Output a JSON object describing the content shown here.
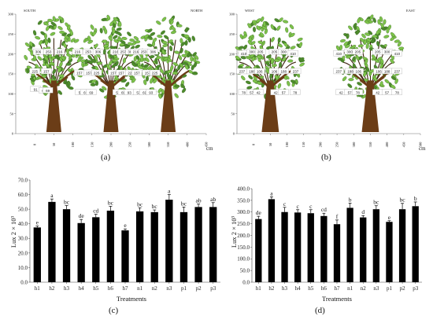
{
  "colors": {
    "trunk": "#6b3d17",
    "leaf": "#7dc24a",
    "leaf_dark": "#4d8b2c",
    "bar": "#000000",
    "axis": "#555555",
    "label_box": "#ffffff"
  },
  "chart_data": [
    {
      "panel": "(a)",
      "type": "scatter",
      "orientation_left": "SOUTH",
      "orientation_right": "NORTH",
      "xlabel": "cm",
      "ylabel": "",
      "xlim": [
        -50,
        450
      ],
      "ylim": [
        0,
        300
      ],
      "xticks": [
        "0",
        "50",
        "100",
        "150",
        "200",
        "250",
        "300",
        "350",
        "400",
        "450"
      ],
      "yticks": [
        "0",
        "50",
        "100",
        "150",
        "200",
        "250",
        "300"
      ],
      "trees": [
        {
          "center": 50,
          "points": [
            {
              "x": 9,
              "y": 205,
              "label": "306"
            },
            {
              "x": 36,
              "y": 205,
              "label": "253"
            },
            {
              "x": 65,
              "y": 205,
              "label": "216"
            },
            {
              "x": 0,
              "y": 156,
              "label": "225"
            },
            {
              "x": 30,
              "y": 156,
              "label": "157"
            },
            {
              "x": 2,
              "y": 111,
              "label": "91"
            },
            {
              "x": 24,
              "y": 108,
              "label": "69"
            },
            {
              "x": 34,
              "y": 108,
              "label": "69"
            }
          ]
        },
        {
          "center": 200,
          "points": [
            {
              "x": 112,
              "y": 205,
              "label": "216"
            },
            {
              "x": 140,
              "y": 205,
              "label": "253"
            },
            {
              "x": 166,
              "y": 205,
              "label": "306"
            },
            {
              "x": 117,
              "y": 152,
              "label": "157"
            },
            {
              "x": 142,
              "y": 152,
              "label": "157"
            },
            {
              "x": 162,
              "y": 152,
              "label": "225"
            },
            {
              "x": 120,
              "y": 103,
              "label": "53"
            },
            {
              "x": 133,
              "y": 103,
              "label": "69"
            },
            {
              "x": 148,
              "y": 103,
              "label": "69"
            }
          ]
        },
        {
          "center": 350,
          "points": [
            {
              "x": 212,
              "y": 205,
              "label": "216"
            },
            {
              "x": 232,
              "y": 205,
              "label": "253"
            },
            {
              "x": 252,
              "y": 205,
              "label": "306"
            },
            {
              "x": 206,
              "y": 152,
              "label": "157"
            },
            {
              "x": 227,
              "y": 152,
              "label": "157"
            },
            {
              "x": 252,
              "y": 152,
              "label": "225"
            },
            {
              "x": 218,
              "y": 103,
              "label": "53"
            },
            {
              "x": 232,
              "y": 103,
              "label": "69"
            },
            {
              "x": 248,
              "y": 103,
              "label": "93"
            }
          ]
        },
        {
          "center": 430,
          "points": [
            {
              "x": 265,
              "y": 205,
              "label": "216"
            },
            {
              "x": 286,
              "y": 205,
              "label": "253"
            },
            {
              "x": 310,
              "y": 205,
              "label": "306"
            },
            {
              "x": 268,
              "y": 152,
              "label": "157"
            },
            {
              "x": 296,
              "y": 152,
              "label": "157"
            },
            {
              "x": 315,
              "y": 152,
              "label": "225"
            },
            {
              "x": 272,
              "y": 103,
              "label": "53"
            },
            {
              "x": 288,
              "y": 103,
              "label": "69"
            },
            {
              "x": 305,
              "y": 103,
              "label": "93"
            }
          ]
        }
      ]
    },
    {
      "panel": "(b)",
      "type": "scatter",
      "orientation_left": "WEST",
      "orientation_right": "EAST",
      "xlabel": "cm",
      "ylabel": "",
      "xlim": [
        -50,
        500
      ],
      "ylim": [
        0,
        300
      ],
      "xticks": [
        "0",
        "50",
        "100",
        "150",
        "200",
        "250",
        "300",
        "350",
        "400",
        "450",
        "500"
      ],
      "yticks": [
        "0",
        "50",
        "100",
        "150",
        "200",
        "250",
        "300"
      ],
      "trees": [
        {
          "center": 50,
          "points": [
            {
              "x": -30,
              "y": 201,
              "label": "410"
            },
            {
              "x": -5,
              "y": 205,
              "label": "300"
            },
            {
              "x": 20,
              "y": 205,
              "label": "205"
            },
            {
              "x": 62,
              "y": 205,
              "label": "205"
            },
            {
              "x": 90,
              "y": 205,
              "label": "300"
            },
            {
              "x": 118,
              "y": 201,
              "label": "410"
            },
            {
              "x": -35,
              "y": 156,
              "label": "237"
            },
            {
              "x": -5,
              "y": 156,
              "label": "188"
            },
            {
              "x": 18,
              "y": 156,
              "label": "106"
            },
            {
              "x": 62,
              "y": 156,
              "label": "106"
            },
            {
              "x": 90,
              "y": 156,
              "label": "188"
            },
            {
              "x": 126,
              "y": 156,
              "label": "237"
            },
            {
              "x": -30,
              "y": 103,
              "label": "78"
            },
            {
              "x": -6,
              "y": 103,
              "label": "57"
            },
            {
              "x": 14,
              "y": 103,
              "label": "42"
            },
            {
              "x": 66,
              "y": 103,
              "label": "42"
            },
            {
              "x": 90,
              "y": 103,
              "label": "57"
            },
            {
              "x": 124,
              "y": 103,
              "label": "78"
            }
          ]
        },
        {
          "center": 350,
          "points": [
            {
              "x": 255,
              "y": 201,
              "label": "410"
            },
            {
              "x": 288,
              "y": 205,
              "label": "300"
            },
            {
              "x": 312,
              "y": 205,
              "label": "205"
            },
            {
              "x": 372,
              "y": 205,
              "label": "205"
            },
            {
              "x": 400,
              "y": 205,
              "label": "300"
            },
            {
              "x": 430,
              "y": 201,
              "label": "410"
            },
            {
              "x": 255,
              "y": 156,
              "label": "237"
            },
            {
              "x": 290,
              "y": 156,
              "label": "188"
            },
            {
              "x": 314,
              "y": 156,
              "label": "106"
            },
            {
              "x": 375,
              "y": 156,
              "label": "106"
            },
            {
              "x": 400,
              "y": 156,
              "label": "188"
            },
            {
              "x": 430,
              "y": 156,
              "label": "237"
            },
            {
              "x": 262,
              "y": 103,
              "label": "42"
            },
            {
              "x": 288,
              "y": 103,
              "label": "57"
            },
            {
              "x": 312,
              "y": 103,
              "label": "78"
            },
            {
              "x": 372,
              "y": 103,
              "label": "42"
            },
            {
              "x": 400,
              "y": 103,
              "label": "57"
            },
            {
              "x": 430,
              "y": 103,
              "label": "78"
            }
          ]
        }
      ]
    },
    {
      "panel": "(c)",
      "type": "bar",
      "xlabel": "Treatments",
      "ylabel": "Lux 2 × 10³",
      "ylim": [
        0,
        70
      ],
      "yticks": [
        "0.0",
        "10.0",
        "20.0",
        "30.0",
        "40.0",
        "50.0",
        "60.0",
        "70.0"
      ],
      "categories": [
        "h1",
        "h2",
        "h3",
        "h4",
        "h5",
        "h6",
        "h7",
        "n1",
        "n2",
        "n3",
        "p1",
        "p2",
        "p3"
      ],
      "values": [
        37.5,
        55.0,
        50.0,
        40.5,
        44.5,
        49.0,
        35.5,
        48.5,
        48.0,
        56.5,
        48.0,
        51.5,
        51.5
      ],
      "errors": [
        1.0,
        2.0,
        2.5,
        2.5,
        2.0,
        3.0,
        1.0,
        2.5,
        1.5,
        3.5,
        3.5,
        2.0,
        3.0
      ],
      "significance": [
        "e",
        "a",
        "bc",
        "de",
        "cd",
        "bc",
        "e",
        "bc",
        "bc",
        "a",
        "bc",
        "ab",
        "ab"
      ]
    },
    {
      "panel": "(d)",
      "type": "bar",
      "xlabel": "Treatments",
      "ylabel": "Lux 2 × 10³",
      "ylim": [
        0,
        400
      ],
      "yticks": [
        "0.0",
        "50.0",
        "100.0",
        "150.0",
        "200.0",
        "250.0",
        "300.0",
        "350.0",
        "400.0"
      ],
      "categories": [
        "h1",
        "h2",
        "h3",
        "h4",
        "h5",
        "h6",
        "h7",
        "n1",
        "n2",
        "n3",
        "p1",
        "p2",
        "p3"
      ],
      "values": [
        270,
        355,
        300,
        298,
        295,
        283,
        248,
        318,
        277,
        312,
        258,
        312,
        325
      ],
      "errors": [
        12,
        10,
        20,
        12,
        15,
        12,
        18,
        20,
        8,
        15,
        5,
        25,
        18
      ],
      "significance": [
        "de",
        "a",
        "c",
        "c",
        "c",
        "cd",
        "f",
        "b",
        "d",
        "bc",
        "e",
        "bc",
        "b"
      ]
    }
  ]
}
